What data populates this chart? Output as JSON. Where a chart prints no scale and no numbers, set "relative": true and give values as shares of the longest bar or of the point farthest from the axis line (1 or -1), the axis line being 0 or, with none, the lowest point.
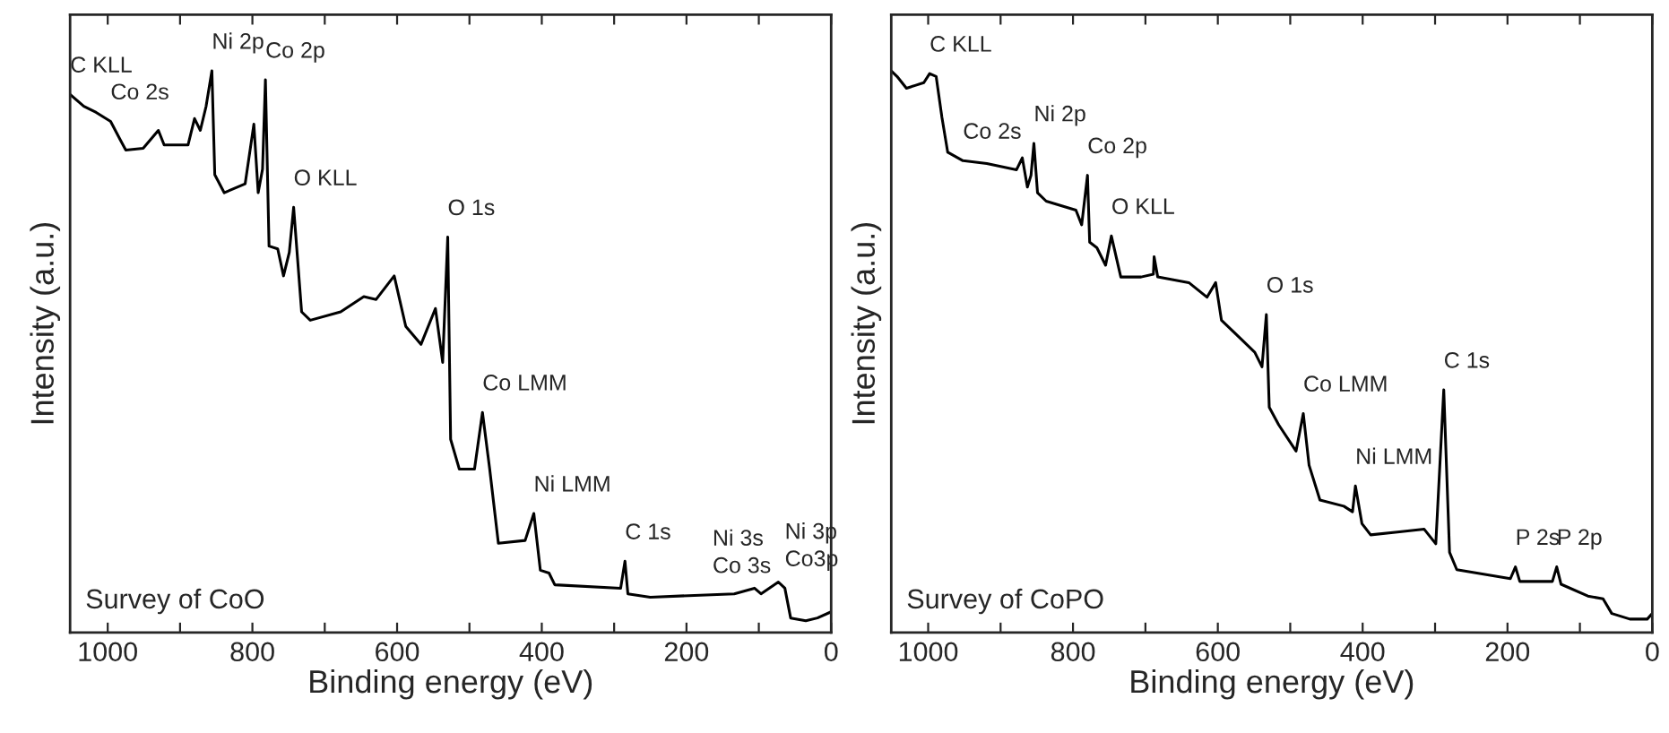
{
  "chart_data": [
    {
      "type": "line",
      "relative": true,
      "xlabel": "Binding energy (eV)",
      "ylabel": "Intensity (a.u.)",
      "xlim": [
        1052,
        0
      ],
      "xticks": [
        1000,
        {
          "value": 900,
          "label": null
        },
        800,
        {
          "value": 700,
          "label": null
        },
        600,
        {
          "value": 500,
          "label": null
        },
        400,
        {
          "value": 300,
          "label": null
        },
        200,
        {
          "value": 100,
          "label": null
        },
        0
      ],
      "tick_labels": "x",
      "grid": false,
      "series": [
        {
          "color": "#000000",
          "x": [
            1052,
            1033,
            1016,
            996,
            983,
            975,
            951,
            930,
            922,
            889,
            880,
            872,
            864,
            856,
            852,
            839,
            810,
            798,
            792,
            786,
            782,
            777,
            765,
            757,
            749,
            743,
            732,
            720,
            678,
            646,
            629,
            604,
            588,
            567,
            547,
            537,
            530,
            526,
            514,
            493,
            482,
            472,
            460,
            423,
            411,
            402,
            390,
            382,
            291,
            285,
            281,
            250,
            134,
            106,
            97,
            73,
            64,
            56,
            35,
            19,
            0
          ],
          "values": [
            0.958,
            0.937,
            0.926,
            0.91,
            0.878,
            0.859,
            0.862,
            0.894,
            0.868,
            0.868,
            0.915,
            0.894,
            0.937,
            1.0,
            0.815,
            0.783,
            0.799,
            0.905,
            0.783,
            0.825,
            0.984,
            0.688,
            0.683,
            0.635,
            0.677,
            0.757,
            0.571,
            0.556,
            0.571,
            0.598,
            0.593,
            0.635,
            0.545,
            0.513,
            0.577,
            0.481,
            0.704,
            0.344,
            0.291,
            0.291,
            0.392,
            0.291,
            0.159,
            0.164,
            0.212,
            0.111,
            0.106,
            0.085,
            0.079,
            0.127,
            0.069,
            0.063,
            0.069,
            0.079,
            0.069,
            0.09,
            0.079,
            0.026,
            0.021,
            0.026,
            0.037
          ]
        }
      ],
      "annotations": [
        "Survey of CoO",
        {
          "text": "C KLL",
          "x": 1052,
          "y": 0.958
        },
        {
          "text": "Co 2s",
          "x": 996,
          "y": 0.91
        },
        {
          "text": "Ni 2p",
          "x": 856,
          "y": 1.0
        },
        {
          "text": "Co 2p",
          "x": 782,
          "y": 0.984
        },
        {
          "text": "O KLL",
          "x": 743,
          "y": 0.757
        },
        {
          "text": "O 1s",
          "x": 530,
          "y": 0.704
        },
        {
          "text": "Co LMM",
          "x": 482,
          "y": 0.392
        },
        {
          "text": "Ni LMM",
          "x": 411,
          "y": 0.212
        },
        {
          "text": "C 1s",
          "x": 285,
          "y": 0.127
        },
        {
          "text": "Co 3s",
          "x": 164,
          "y": 0.067
        },
        {
          "text": "Ni 3s",
          "x": 164,
          "y": 0.067
        },
        {
          "text": "Co3p",
          "x": 64,
          "y": 0.079
        },
        {
          "text": "Ni 3p",
          "x": 64,
          "y": 0.079
        }
      ]
    },
    {
      "type": "line",
      "relative": true,
      "xlabel": "Binding energy (eV)",
      "ylabel": "Intensity (a.u.)",
      "xlim": [
        1051,
        0
      ],
      "xticks": [
        1000,
        {
          "value": 900,
          "label": null
        },
        800,
        {
          "value": 700,
          "label": null
        },
        600,
        {
          "value": 500,
          "label": null
        },
        400,
        {
          "value": 300,
          "label": null
        },
        200,
        {
          "value": 100,
          "label": null
        },
        0
      ],
      "tick_labels": "x",
      "grid": false,
      "series": [
        {
          "color": "#000000",
          "x": [
            1051,
            1043,
            1030,
            1018,
            1006,
            998,
            989,
            981,
            973,
            952,
            919,
            878,
            870,
            863,
            858,
            854,
            849,
            837,
            796,
            788,
            780,
            777,
            767,
            755,
            747,
            734,
            706,
            689,
            688,
            683,
            640,
            615,
            603,
            595,
            574,
            549,
            539,
            533,
            529,
            516,
            492,
            482,
            474,
            459,
            426,
            414,
            410,
            401,
            389,
            352,
            315,
            299,
            288,
            280,
            270,
            196,
            189,
            183,
            138,
            132,
            126,
            89,
            68,
            56,
            31,
            7,
            0
          ],
          "values": [
            1.0,
            0.99,
            0.969,
            0.974,
            0.979,
            0.995,
            0.99,
            0.917,
            0.855,
            0.84,
            0.835,
            0.824,
            0.845,
            0.793,
            0.814,
            0.871,
            0.783,
            0.768,
            0.752,
            0.726,
            0.814,
            0.695,
            0.685,
            0.654,
            0.706,
            0.633,
            0.633,
            0.638,
            0.669,
            0.633,
            0.623,
            0.597,
            0.623,
            0.556,
            0.53,
            0.499,
            0.473,
            0.566,
            0.401,
            0.37,
            0.323,
            0.39,
            0.298,
            0.236,
            0.225,
            0.215,
            0.261,
            0.194,
            0.174,
            0.179,
            0.184,
            0.158,
            0.432,
            0.143,
            0.112,
            0.096,
            0.117,
            0.091,
            0.091,
            0.117,
            0.086,
            0.065,
            0.06,
            0.034,
            0.024,
            0.024,
            0.034
          ]
        }
      ],
      "annotations": [
        "Survey of CoPO",
        {
          "text": "C KLL",
          "x": 998,
          "y": 0.995
        },
        {
          "text": "Co 2s",
          "x": 952,
          "y": 0.84
        },
        {
          "text": "Ni 2p",
          "x": 854,
          "y": 0.871
        },
        {
          "text": "Co 2p",
          "x": 780,
          "y": 0.814
        },
        {
          "text": "O KLL",
          "x": 747,
          "y": 0.706
        },
        {
          "text": "O 1s",
          "x": 533,
          "y": 0.566
        },
        {
          "text": "C 1s",
          "x": 288,
          "y": 0.432
        },
        {
          "text": "Co LMM",
          "x": 482,
          "y": 0.39
        },
        {
          "text": "Ni LMM",
          "x": 410,
          "y": 0.261
        },
        {
          "text": "P 2s",
          "x": 189,
          "y": 0.117
        },
        {
          "text": "P 2p",
          "x": 132,
          "y": 0.117
        }
      ]
    }
  ]
}
